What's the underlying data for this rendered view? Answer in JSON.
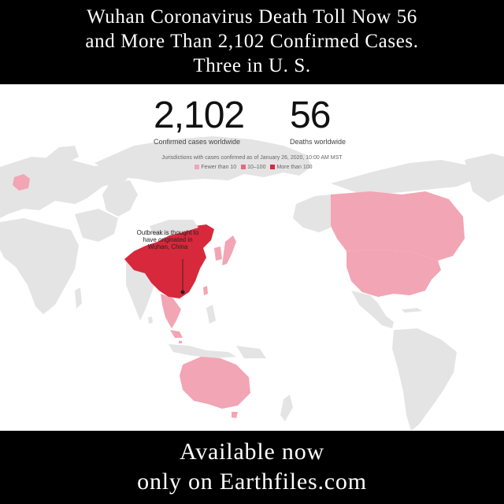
{
  "header": {
    "line1": "Wuhan Coronavirus Death Toll Now 56",
    "line2": "and More Than 2,102 Confirmed Cases.",
    "line3": "Three in U. S."
  },
  "stats": {
    "cases_value": "2,102",
    "cases_label": "Confirmed cases worldwide",
    "deaths_value": "56",
    "deaths_label": "Deaths worldwide"
  },
  "map": {
    "subtitle": "Jurisdictions with cases confirmed as of January 26, 2020, 10:00 AM MST",
    "legend": [
      {
        "label": "Fewer than 10",
        "color": "#f2a5b4"
      },
      {
        "label": "10–100",
        "color": "#e8687e"
      },
      {
        "label": "More than 100",
        "color": "#d8283b"
      }
    ],
    "annotation_line1": "Outbreak is thought to",
    "annotation_line2": "have originated in",
    "annotation_line3": "Wuhan, China",
    "colors": {
      "land": "#e4e4e4",
      "fewer_than_10": "#f2a5b4",
      "ten_to_100": "#e8687e",
      "more_than_100": "#d8283b"
    }
  },
  "footer": {
    "line1": "Available now",
    "line2": "only on Earthfiles.com"
  }
}
